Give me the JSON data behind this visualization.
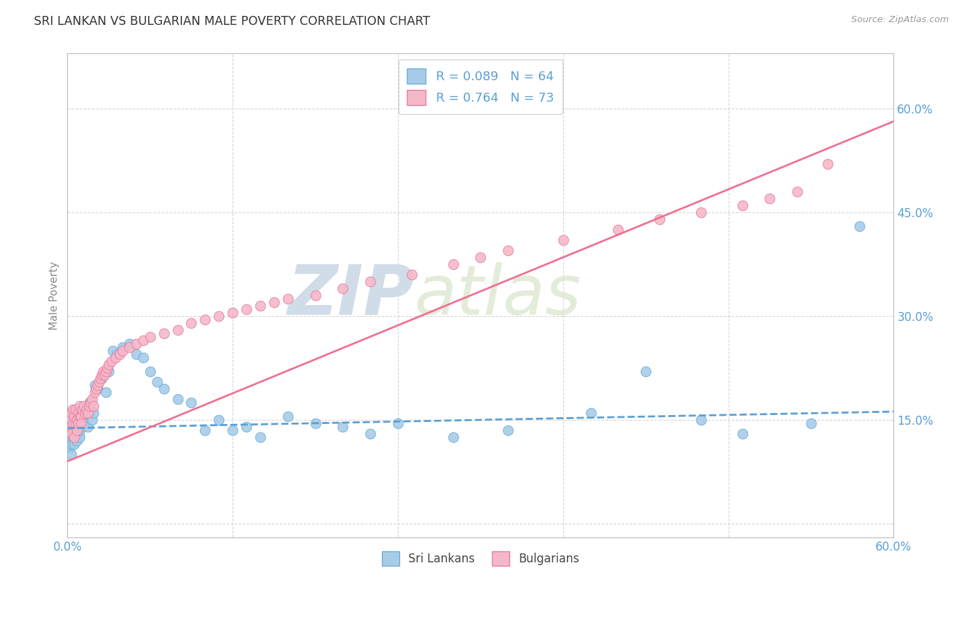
{
  "title": "SRI LANKAN VS BULGARIAN MALE POVERTY CORRELATION CHART",
  "source": "Source: ZipAtlas.com",
  "ylabel": "Male Poverty",
  "xlim": [
    0.0,
    0.6
  ],
  "ylim": [
    -0.02,
    0.68
  ],
  "yticks": [
    0.0,
    0.15,
    0.3,
    0.45,
    0.6
  ],
  "xticks": [
    0.0,
    0.12,
    0.24,
    0.36,
    0.48,
    0.6
  ],
  "sri_lankan_color": "#a8cce8",
  "bulgarian_color": "#f5b8c8",
  "sri_lankan_edge": "#6aaed6",
  "bulgarian_edge": "#e87aa0",
  "regression_sri_color": "#5b9fd4",
  "regression_bul_color": "#f07090",
  "background_color": "#ffffff",
  "grid_color": "#cccccc",
  "title_color": "#333333",
  "tick_color": "#5b9fd4",
  "watermark_color": "#e0eaf5",
  "sri_lankans_x": [
    0.001,
    0.001,
    0.002,
    0.002,
    0.003,
    0.003,
    0.003,
    0.004,
    0.004,
    0.005,
    0.005,
    0.005,
    0.006,
    0.006,
    0.007,
    0.007,
    0.008,
    0.008,
    0.009,
    0.009,
    0.01,
    0.011,
    0.012,
    0.013,
    0.014,
    0.015,
    0.016,
    0.017,
    0.018,
    0.019,
    0.02,
    0.022,
    0.025,
    0.028,
    0.03,
    0.033,
    0.036,
    0.04,
    0.045,
    0.05,
    0.055,
    0.06,
    0.065,
    0.07,
    0.08,
    0.09,
    0.1,
    0.11,
    0.12,
    0.13,
    0.14,
    0.16,
    0.18,
    0.2,
    0.22,
    0.24,
    0.28,
    0.32,
    0.38,
    0.42,
    0.46,
    0.49,
    0.54,
    0.575
  ],
  "sri_lankans_y": [
    0.135,
    0.12,
    0.145,
    0.11,
    0.13,
    0.115,
    0.1,
    0.14,
    0.125,
    0.13,
    0.115,
    0.14,
    0.125,
    0.135,
    0.12,
    0.15,
    0.13,
    0.145,
    0.125,
    0.135,
    0.14,
    0.15,
    0.155,
    0.145,
    0.16,
    0.14,
    0.175,
    0.165,
    0.15,
    0.16,
    0.2,
    0.195,
    0.21,
    0.19,
    0.22,
    0.25,
    0.245,
    0.255,
    0.26,
    0.245,
    0.24,
    0.22,
    0.205,
    0.195,
    0.18,
    0.175,
    0.135,
    0.15,
    0.135,
    0.14,
    0.125,
    0.155,
    0.145,
    0.14,
    0.13,
    0.145,
    0.125,
    0.135,
    0.16,
    0.22,
    0.15,
    0.13,
    0.145,
    0.43
  ],
  "bulgarians_x": [
    0.001,
    0.001,
    0.002,
    0.002,
    0.003,
    0.003,
    0.004,
    0.004,
    0.005,
    0.005,
    0.006,
    0.006,
    0.007,
    0.007,
    0.008,
    0.008,
    0.009,
    0.009,
    0.01,
    0.01,
    0.011,
    0.012,
    0.013,
    0.014,
    0.015,
    0.016,
    0.017,
    0.018,
    0.019,
    0.02,
    0.021,
    0.022,
    0.023,
    0.024,
    0.025,
    0.026,
    0.027,
    0.028,
    0.029,
    0.03,
    0.032,
    0.035,
    0.038,
    0.04,
    0.045,
    0.05,
    0.055,
    0.06,
    0.07,
    0.08,
    0.09,
    0.1,
    0.11,
    0.12,
    0.13,
    0.14,
    0.15,
    0.16,
    0.18,
    0.2,
    0.22,
    0.25,
    0.28,
    0.3,
    0.32,
    0.36,
    0.4,
    0.43,
    0.46,
    0.49,
    0.51,
    0.53,
    0.552
  ],
  "bulgarians_y": [
    0.145,
    0.135,
    0.15,
    0.14,
    0.16,
    0.13,
    0.165,
    0.145,
    0.155,
    0.125,
    0.145,
    0.165,
    0.15,
    0.135,
    0.16,
    0.145,
    0.155,
    0.17,
    0.155,
    0.145,
    0.165,
    0.17,
    0.16,
    0.165,
    0.16,
    0.17,
    0.175,
    0.18,
    0.17,
    0.19,
    0.195,
    0.2,
    0.205,
    0.21,
    0.215,
    0.22,
    0.215,
    0.22,
    0.225,
    0.23,
    0.235,
    0.24,
    0.245,
    0.25,
    0.255,
    0.26,
    0.265,
    0.27,
    0.275,
    0.28,
    0.29,
    0.295,
    0.3,
    0.305,
    0.31,
    0.315,
    0.32,
    0.325,
    0.33,
    0.34,
    0.35,
    0.36,
    0.375,
    0.385,
    0.395,
    0.41,
    0.425,
    0.44,
    0.45,
    0.46,
    0.47,
    0.48,
    0.52
  ],
  "sri_reg_slope": 0.04,
  "sri_reg_intercept": 0.138,
  "bul_reg_slope": 0.82,
  "bul_reg_intercept": 0.09,
  "sri_lankans_label": "Sri Lankans",
  "bulgarians_label": "Bulgarians",
  "legend_sri": "R = 0.089   N = 64",
  "legend_bul": "R = 0.764   N = 73"
}
